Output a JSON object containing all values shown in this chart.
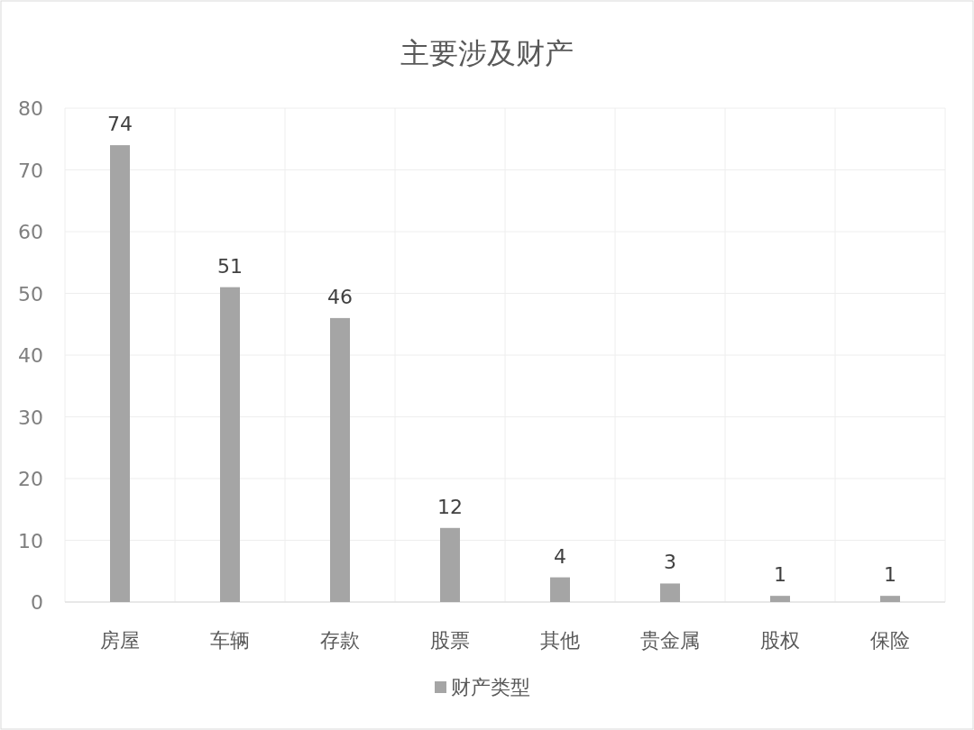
{
  "chart_data": {
    "type": "bar",
    "title": "主要涉及财产",
    "categories": [
      "房屋",
      "车辆",
      "存款",
      "股票",
      "其他",
      "贵金属",
      "股权",
      "保险"
    ],
    "series": [
      {
        "name": "财产类型",
        "color": "#a5a5a5",
        "values": [
          74,
          51,
          46,
          12,
          4,
          3,
          1,
          1
        ]
      }
    ],
    "ylim": [
      0,
      80
    ],
    "yticks": [
      0,
      10,
      20,
      30,
      40,
      50,
      60,
      70,
      80
    ],
    "grid": true,
    "legend": "bottom",
    "data_labels": true
  }
}
